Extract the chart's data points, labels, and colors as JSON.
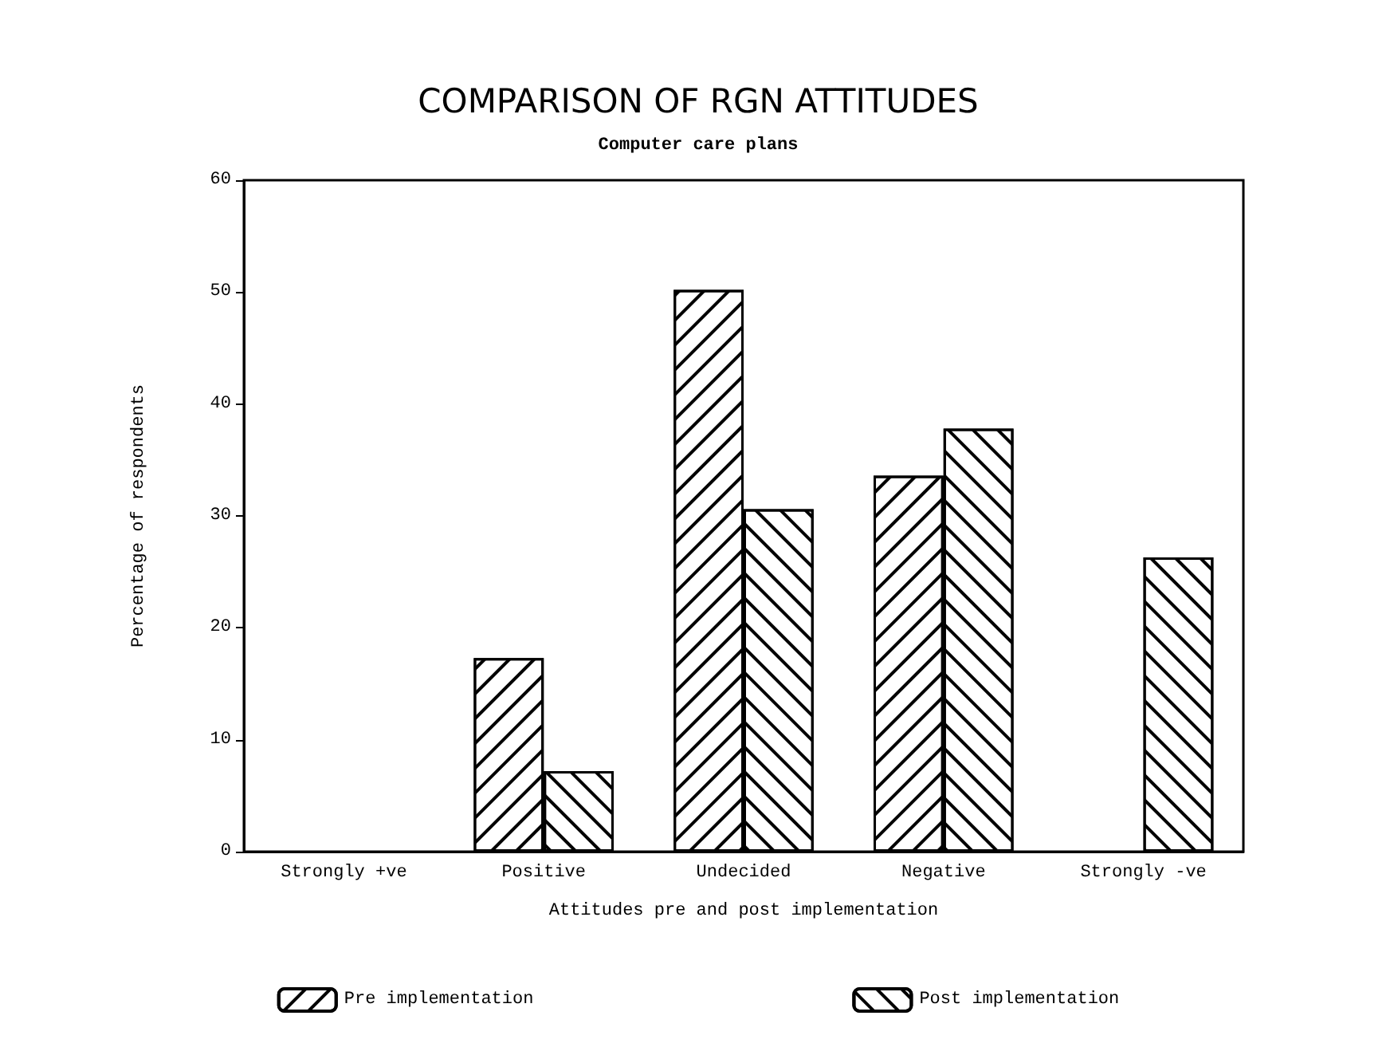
{
  "chart_data": {
    "type": "bar",
    "title": "COMPARISON OF RGN ATTITUDES",
    "subtitle": "Computer care plans",
    "xlabel": "Attitudes pre and post implementation",
    "ylabel": "Percentage of respondents",
    "categories": [
      "Strongly +ve",
      "Positive",
      "Undecided",
      "Negative",
      "Strongly -ve"
    ],
    "series": [
      {
        "name": "Pre implementation",
        "color": "#ffffff",
        "values": [
          null,
          17.3,
          50.2,
          33.6,
          null
        ]
      },
      {
        "name": "Post implementation",
        "color": "#ffffff",
        "values": [
          null,
          7.2,
          30.6,
          37.8,
          26.3
        ]
      }
    ],
    "ylim": [
      0,
      60
    ],
    "yticks": [
      0,
      10,
      20,
      30,
      40,
      50,
      60
    ],
    "grid": false,
    "legend": "bottom"
  }
}
